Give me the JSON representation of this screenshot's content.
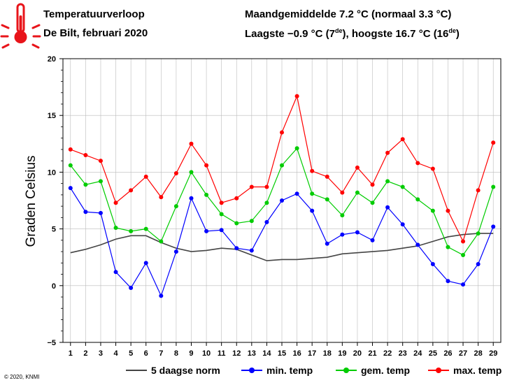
{
  "header": {
    "title": "Temperatuurverloop",
    "subtitle": "De Bilt, februari 2020",
    "stats_line1": "Maandgemiddelde 7.2 °C (normaal 3.3 °C)",
    "stats_line2_prefix": "Laagste −0.9 °C (7",
    "stats_line2_sup1": "de",
    "stats_line2_mid": "), hoogste 16.7 °C (16",
    "stats_line2_sup2": "de",
    "stats_line2_suffix": ")"
  },
  "copyright": "© 2020, KNMI",
  "icon": "thermometer-hot-icon",
  "colors": {
    "norm": "#444444",
    "min": "#0000ff",
    "gem": "#00cc00",
    "max": "#ff0000",
    "grid": "#bbbbbb"
  },
  "chart_data": {
    "type": "line",
    "title": "",
    "xlabel": "",
    "ylabel": "Graden Celsius",
    "x": [
      1,
      2,
      3,
      4,
      5,
      6,
      7,
      8,
      9,
      10,
      11,
      12,
      13,
      14,
      15,
      16,
      17,
      18,
      19,
      20,
      21,
      22,
      23,
      24,
      25,
      26,
      27,
      28,
      29
    ],
    "xlim": [
      0.5,
      29.5
    ],
    "ylim": [
      -5,
      20
    ],
    "yticks": [
      -5,
      0,
      5,
      10,
      15,
      20
    ],
    "ytick_labels": [
      "−5",
      "0",
      "5",
      "10",
      "15",
      "20"
    ],
    "grid": true,
    "legend_position": "bottom",
    "series": [
      {
        "name": "5 daagse norm",
        "key": "norm",
        "markers": false,
        "values": [
          2.9,
          3.2,
          3.6,
          4.1,
          4.4,
          4.4,
          3.8,
          3.3,
          3.0,
          3.1,
          3.3,
          3.2,
          2.7,
          2.2,
          2.3,
          2.3,
          2.4,
          2.5,
          2.8,
          2.9,
          3.0,
          3.1,
          3.3,
          3.5,
          3.9,
          4.3,
          4.5,
          4.6,
          4.6
        ]
      },
      {
        "name": "min. temp",
        "key": "min",
        "markers": true,
        "values": [
          8.6,
          6.5,
          6.4,
          1.2,
          -0.2,
          2.0,
          -0.9,
          3.0,
          7.7,
          4.8,
          4.9,
          3.3,
          3.1,
          5.6,
          7.5,
          8.1,
          6.6,
          3.7,
          4.5,
          4.7,
          4.0,
          6.9,
          5.4,
          3.6,
          1.9,
          0.4,
          0.1,
          1.9,
          5.2
        ]
      },
      {
        "name": "gem. temp",
        "key": "gem",
        "markers": true,
        "values": [
          10.6,
          8.9,
          9.2,
          5.1,
          4.8,
          5.0,
          3.9,
          7.0,
          10.0,
          8.0,
          6.3,
          5.5,
          5.7,
          7.3,
          10.6,
          12.1,
          8.1,
          7.6,
          6.2,
          8.2,
          7.3,
          9.2,
          8.7,
          7.6,
          6.6,
          3.4,
          2.7,
          4.6,
          8.7
        ]
      },
      {
        "name": "max. temp",
        "key": "max",
        "markers": true,
        "values": [
          12.0,
          11.5,
          11.0,
          7.3,
          8.4,
          9.6,
          7.8,
          9.9,
          12.5,
          10.6,
          7.3,
          7.7,
          8.7,
          8.7,
          13.5,
          16.7,
          10.1,
          9.6,
          8.2,
          10.4,
          8.9,
          11.7,
          12.9,
          10.8,
          10.3,
          6.6,
          3.9,
          8.4,
          12.6
        ]
      }
    ]
  }
}
